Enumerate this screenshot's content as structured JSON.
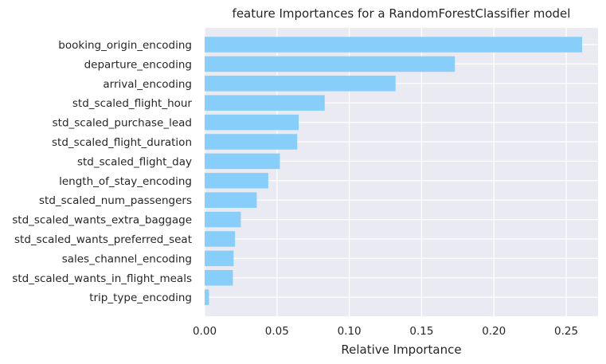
{
  "chart_data": {
    "type": "bar",
    "orientation": "horizontal",
    "title": "feature Importances for a RandomForestClassifier model",
    "xlabel": "Relative Importance",
    "ylabel": "",
    "xlim": [
      0.0,
      0.272
    ],
    "xticks": [
      0.0,
      0.05,
      0.1,
      0.15,
      0.2,
      0.25
    ],
    "xtick_labels": [
      "0.00",
      "0.05",
      "0.10",
      "0.15",
      "0.20",
      "0.25"
    ],
    "grid": true,
    "bar_color": "#87cefa",
    "background_color": "#eaeaf2",
    "categories": [
      "booking_origin_encoding",
      "departure_encoding",
      "arrival_encoding",
      "std_scaled_flight_hour",
      "std_scaled_purchase_lead",
      "std_scaled_flight_duration",
      "std_scaled_flight_day",
      "length_of_stay_encoding",
      "std_scaled_num_passengers",
      "std_scaled_wants_extra_baggage",
      "std_scaled_wants_preferred_seat",
      "sales_channel_encoding",
      "std_scaled_wants_in_flight_meals",
      "trip_type_encoding"
    ],
    "values": [
      0.261,
      0.173,
      0.132,
      0.083,
      0.065,
      0.064,
      0.052,
      0.044,
      0.036,
      0.025,
      0.021,
      0.02,
      0.0195,
      0.003
    ]
  }
}
